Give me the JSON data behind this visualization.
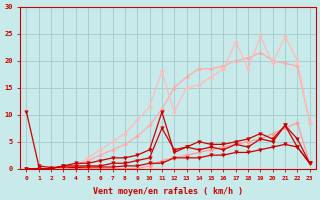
{
  "background_color": "#c8eaea",
  "grid_color": "#a0cccc",
  "x_ticks": [
    0,
    1,
    2,
    3,
    4,
    5,
    6,
    7,
    8,
    9,
    10,
    11,
    12,
    13,
    14,
    15,
    16,
    17,
    18,
    19,
    20,
    21,
    22,
    23
  ],
  "ylim": [
    0,
    30
  ],
  "yticks": [
    0,
    5,
    10,
    15,
    20,
    25,
    30
  ],
  "xlabel": "Vent moyen/en rafales ( km/h )",
  "series": [
    {
      "y": [
        0.0,
        0.0,
        0.0,
        0.0,
        0.0,
        0.0,
        0.0,
        0.0,
        0.0,
        0.0,
        0.5,
        1.5,
        2.0,
        2.5,
        3.0,
        3.5,
        4.0,
        4.5,
        5.0,
        5.5,
        6.5,
        7.5,
        8.5,
        1.0
      ],
      "color": "#ff9999",
      "lw": 0.9,
      "marker": "D",
      "ms": 2.0,
      "zorder": 2
    },
    {
      "y": [
        0.0,
        0.0,
        0.0,
        0.0,
        0.5,
        1.5,
        2.5,
        3.5,
        4.5,
        6.0,
        8.0,
        11.0,
        15.0,
        17.0,
        18.5,
        18.5,
        19.0,
        20.0,
        20.5,
        21.5,
        20.0,
        19.5,
        19.0,
        8.5
      ],
      "color": "#ffaaaa",
      "lw": 0.9,
      "marker": "D",
      "ms": 2.0,
      "zorder": 2
    },
    {
      "y": [
        0.0,
        0.0,
        0.0,
        0.0,
        0.5,
        2.0,
        3.5,
        5.0,
        6.5,
        9.0,
        11.5,
        18.0,
        10.5,
        15.0,
        15.5,
        17.0,
        18.5,
        23.5,
        18.5,
        24.5,
        19.5,
        24.5,
        20.0,
        8.5
      ],
      "color": "#ffbbbb",
      "lw": 0.9,
      "marker": "D",
      "ms": 2.0,
      "zorder": 2
    },
    {
      "y": [
        10.5,
        0.5,
        0.2,
        0.3,
        0.2,
        0.3,
        0.3,
        0.3,
        0.5,
        0.5,
        1.0,
        1.0,
        2.0,
        2.0,
        2.0,
        2.5,
        2.5,
        3.0,
        3.0,
        3.5,
        4.0,
        4.5,
        4.0,
        1.0
      ],
      "color": "#cc0000",
      "lw": 0.9,
      "marker": "v",
      "ms": 2.5,
      "zorder": 3
    },
    {
      "y": [
        0.0,
        0.0,
        0.0,
        0.5,
        0.5,
        0.5,
        0.5,
        1.0,
        1.0,
        1.5,
        2.0,
        7.5,
        3.5,
        4.0,
        3.5,
        4.0,
        3.5,
        4.5,
        4.0,
        5.5,
        5.0,
        8.0,
        4.0,
        1.0
      ],
      "color": "#cc0000",
      "lw": 0.9,
      "marker": "v",
      "ms": 2.5,
      "zorder": 3
    },
    {
      "y": [
        0.0,
        0.0,
        0.0,
        0.5,
        1.0,
        1.0,
        1.5,
        2.0,
        2.0,
        2.5,
        3.5,
        10.5,
        3.0,
        4.0,
        5.0,
        4.5,
        4.5,
        5.0,
        5.5,
        6.5,
        5.5,
        8.0,
        5.5,
        1.0
      ],
      "color": "#cc0000",
      "lw": 0.9,
      "marker": "v",
      "ms": 2.5,
      "zorder": 3
    }
  ]
}
